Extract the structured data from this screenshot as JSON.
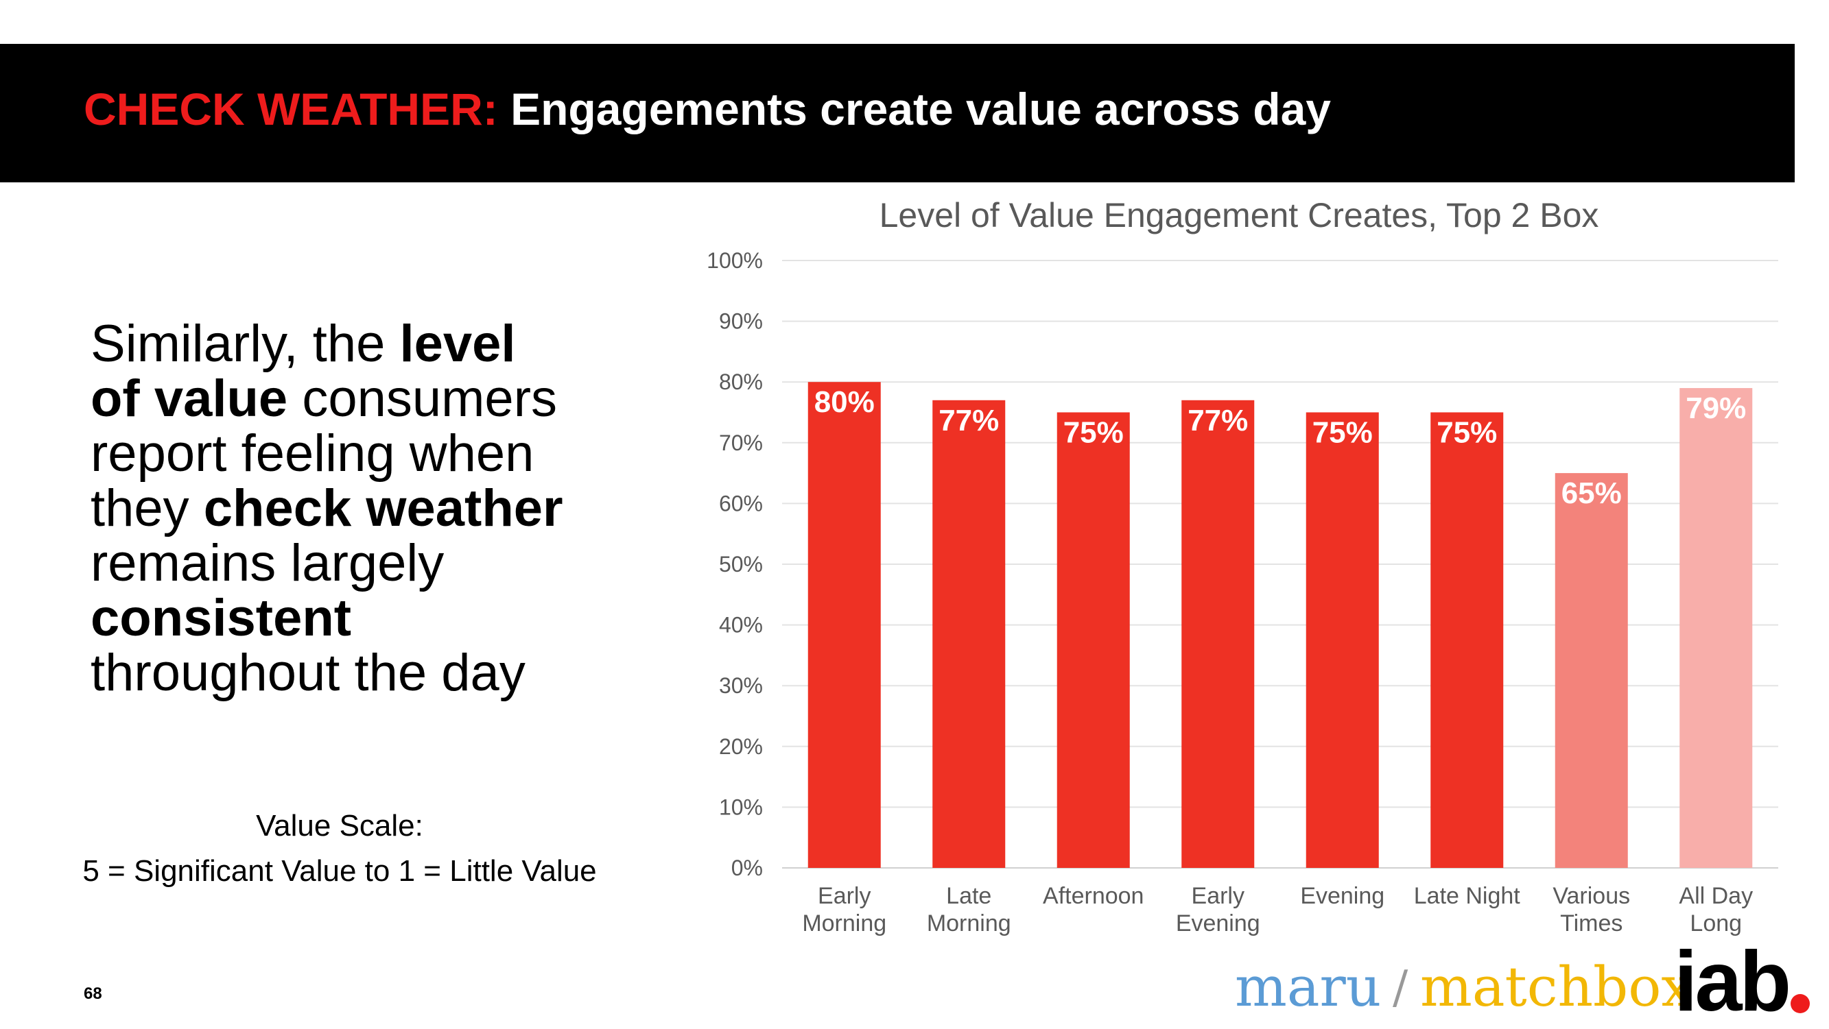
{
  "header": {
    "accent": "CHECK WEATHER:",
    "title": " Engagements create value across day",
    "accent_color": "#ee1c1c"
  },
  "body": {
    "p1": "Similarly, the ",
    "b1": "level",
    "p2": "of value",
    "p3": " consumers",
    "p4": "report feeling when",
    "p5": "they ",
    "b2": "check weather",
    "p6": "remains largely",
    "b3": "consistent",
    "p7": "throughout the day"
  },
  "scale": {
    "title": "Value Scale:",
    "description": "5 = Significant Value to 1 = Little Value"
  },
  "page_number": "68",
  "logos": {
    "maru": "maru",
    "slash": "/",
    "matchbox": "matchbox",
    "iab": "iab"
  },
  "chart_data": {
    "type": "bar",
    "title": "Level of Value Engagement Creates, Top 2 Box",
    "categories": [
      [
        "Early",
        "Morning"
      ],
      [
        "Late",
        "Morning"
      ],
      [
        "Afternoon"
      ],
      [
        "Early",
        "Evening"
      ],
      [
        "Evening"
      ],
      [
        "Late Night"
      ],
      [
        "Various",
        "Times"
      ],
      [
        "All Day",
        "Long"
      ]
    ],
    "values": [
      80,
      77,
      75,
      77,
      75,
      75,
      65,
      79
    ],
    "data_labels": [
      "80%",
      "77%",
      "75%",
      "77%",
      "75%",
      "75%",
      "65%",
      "79%"
    ],
    "bar_colors": [
      "#ee3124",
      "#ee3124",
      "#ee3124",
      "#ee3124",
      "#ee3124",
      "#ee3124",
      "#f3837b",
      "#f8aeaa"
    ],
    "ylim": [
      0,
      100
    ],
    "yticks": [
      0,
      10,
      20,
      30,
      40,
      50,
      60,
      70,
      80,
      90,
      100
    ],
    "ytick_labels": [
      "0%",
      "10%",
      "20%",
      "30%",
      "40%",
      "50%",
      "60%",
      "70%",
      "80%",
      "90%",
      "100%"
    ],
    "grid": true,
    "legend": "none"
  }
}
